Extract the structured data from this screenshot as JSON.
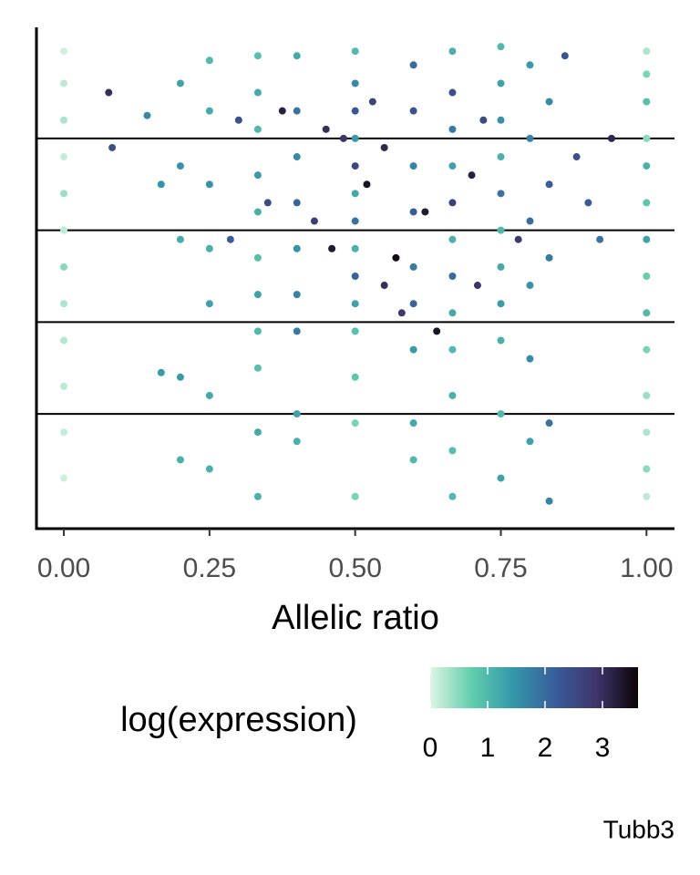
{
  "chart_data": {
    "type": "scatter",
    "xlabel": "Allelic ratio",
    "caption": "Tubb3",
    "xlim": [
      -0.047,
      1.048
    ],
    "ylim": [
      -0.25,
      5.21
    ],
    "xticks": [
      {
        "value": 0,
        "label": "0.00"
      },
      {
        "value": 0.25,
        "label": "0.25"
      },
      {
        "value": 0.5,
        "label": "0.50"
      },
      {
        "value": 0.75,
        "label": "0.75"
      },
      {
        "value": 1,
        "label": "1.00"
      }
    ],
    "hlines": [
      1,
      2,
      3,
      4
    ],
    "colorbar": {
      "title": "log(expression)",
      "lim": [
        0,
        3.62
      ],
      "ticks": [
        0,
        1,
        2,
        3
      ],
      "colormap": [
        "#def5e5",
        "#60ceac",
        "#3497a9",
        "#395d9c",
        "#3e356b",
        "#0b0405"
      ]
    },
    "x": [
      0,
      0,
      0,
      0,
      0,
      0,
      0,
      0,
      0,
      0,
      0,
      0,
      1,
      1,
      1,
      1,
      1,
      1,
      1,
      1,
      1,
      1,
      1,
      1,
      1,
      1,
      0.5,
      0.5,
      0.5,
      0.5,
      0.5,
      0.5,
      0.5,
      0.5,
      0.5,
      0.5,
      0.5,
      0.5,
      0.5,
      0.5,
      0.333,
      0.333,
      0.333,
      0.333,
      0.333,
      0.333,
      0.333,
      0.333,
      0.333,
      0.333,
      0.333,
      0.667,
      0.667,
      0.667,
      0.667,
      0.667,
      0.667,
      0.667,
      0.667,
      0.667,
      0.667,
      0.667,
      0.667,
      0.75,
      0.75,
      0.75,
      0.75,
      0.75,
      0.75,
      0.75,
      0.75,
      0.75,
      0.75,
      0.75,
      0.25,
      0.25,
      0.25,
      0.25,
      0.25,
      0.25,
      0.25,
      0.4,
      0.4,
      0.4,
      0.4,
      0.4,
      0.4,
      0.4,
      0.4,
      0.4,
      0.6,
      0.6,
      0.6,
      0.6,
      0.6,
      0.6,
      0.6,
      0.6,
      0.6,
      0.2,
      0.2,
      0.2,
      0.2,
      0.2,
      0.8,
      0.8,
      0.8,
      0.8,
      0.8,
      0.8,
      0.833,
      0.833,
      0.833,
      0.833,
      0.833,
      0.077,
      0.083,
      0.143,
      0.167,
      0.167,
      0.286,
      0.3,
      0.35,
      0.375,
      0.45,
      0.43,
      0.46,
      0.48,
      0.52,
      0.55,
      0.57,
      0.58,
      0.62,
      0.64,
      0.7,
      0.71,
      0.72,
      0.78,
      0.86,
      0.88,
      0.9,
      0.94,
      0.92,
      0.55,
      0.53
    ],
    "y": [
      4.95,
      4.6,
      4.2,
      3.8,
      3.4,
      3.0,
      2.6,
      2.2,
      1.8,
      1.3,
      0.8,
      0.3,
      4.95,
      4.7,
      4.4,
      4.0,
      3.7,
      3.3,
      2.9,
      2.5,
      2.1,
      1.7,
      1.2,
      0.8,
      0.4,
      0.1,
      4.95,
      4.6,
      4.3,
      4.0,
      3.7,
      3.4,
      3.1,
      2.8,
      2.5,
      2.2,
      1.9,
      1.4,
      0.9,
      0.1,
      4.9,
      4.5,
      4.1,
      3.6,
      3.2,
      2.7,
      2.3,
      1.9,
      1.5,
      0.8,
      0.1,
      4.95,
      4.5,
      4.1,
      3.7,
      3.3,
      2.9,
      2.5,
      2.1,
      1.7,
      1.2,
      0.6,
      0.1,
      5.0,
      4.6,
      4.2,
      3.8,
      3.4,
      3.0,
      2.6,
      2.2,
      1.8,
      1.0,
      0.3,
      4.85,
      4.3,
      3.5,
      2.8,
      2.2,
      1.2,
      0.4,
      4.9,
      4.3,
      3.8,
      3.3,
      2.8,
      2.3,
      1.9,
      1.0,
      0.7,
      4.8,
      4.3,
      3.7,
      3.2,
      2.6,
      2.2,
      1.7,
      0.9,
      0.5,
      4.6,
      3.7,
      2.9,
      1.4,
      0.5,
      4.8,
      4.0,
      3.1,
      2.4,
      1.6,
      0.7,
      4.4,
      3.5,
      2.7,
      0.9,
      0.05,
      4.5,
      3.9,
      4.25,
      3.5,
      1.45,
      2.9,
      4.2,
      3.3,
      4.3,
      4.1,
      3.1,
      2.8,
      4.0,
      3.5,
      3.9,
      2.7,
      2.1,
      3.2,
      1.9,
      3.6,
      2.4,
      4.2,
      2.9,
      4.9,
      3.8,
      3.3,
      4.0,
      2.9,
      2.4,
      4.4
    ],
    "color_values": [
      0.1,
      0.2,
      0.3,
      0.15,
      0.4,
      0.2,
      0.5,
      0.3,
      0.25,
      0.2,
      0.15,
      0.1,
      0.3,
      0.6,
      0.9,
      0.5,
      1.1,
      0.8,
      1.3,
      0.7,
      1.0,
      0.6,
      0.4,
      0.3,
      0.5,
      0.2,
      1.0,
      1.6,
      2.3,
      1.4,
      2.6,
      1.2,
      1.9,
      1.1,
      2.1,
      1.3,
      0.9,
      0.8,
      0.6,
      0.6,
      0.9,
      1.2,
      1.0,
      1.4,
      1.1,
      0.9,
      1.3,
      1.0,
      0.9,
      1.2,
      1.1,
      1.1,
      2.4,
      1.8,
      1.3,
      2.7,
      1.1,
      2.0,
      1.2,
      1.0,
      1.1,
      0.9,
      1.0,
      1.0,
      1.3,
      1.5,
      1.1,
      1.9,
      1.0,
      1.2,
      1.4,
      1.1,
      1.0,
      1.3,
      1.0,
      1.2,
      1.5,
      1.1,
      1.3,
      1.2,
      1.1,
      1.2,
      1.9,
      1.6,
      2.1,
      1.5,
      1.7,
      1.8,
      1.3,
      1.1,
      2.0,
      2.4,
      1.7,
      2.2,
      1.8,
      2.1,
      1.4,
      1.2,
      1.0,
      1.3,
      1.5,
      1.2,
      1.4,
      1.1,
      1.4,
      1.7,
      2.0,
      1.5,
      1.6,
      1.3,
      1.6,
      2.2,
      1.8,
      1.9,
      1.7,
      3.0,
      2.4,
      1.6,
      1.5,
      1.4,
      2.2,
      2.4,
      2.5,
      3.2,
      3.0,
      2.7,
      3.3,
      2.9,
      3.4,
      3.1,
      3.5,
      2.8,
      3.3,
      3.4,
      3.2,
      2.9,
      2.5,
      2.8,
      2.3,
      2.4,
      2.2,
      3.1,
      1.9,
      3.0,
      2.6
    ]
  }
}
